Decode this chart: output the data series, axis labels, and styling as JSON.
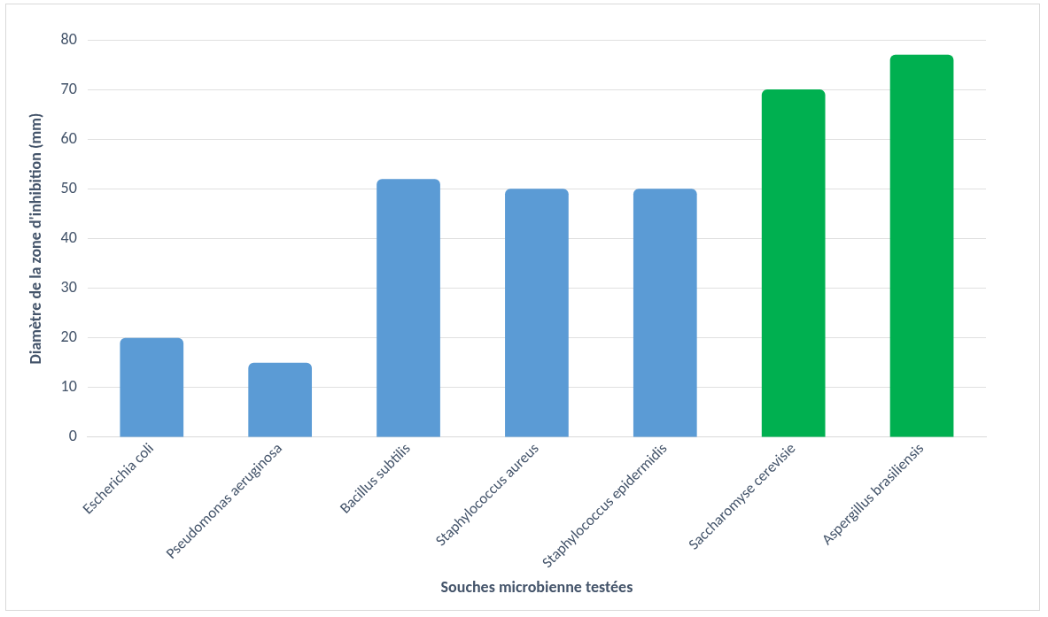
{
  "chart_data": {
    "type": "bar",
    "xlabel": "Souches microbienne testées",
    "ylabel": "Diamètre de la zone d'inhibition (mm)",
    "categories": [
      "Escherichia coli",
      "Pseudomonas aeruginosa",
      "Bacillus subtilis",
      "Staphylococcus aureus",
      "Staphylococcus epidermidis",
      "Saccharomyse cerevisie",
      "Aspergillus brasiliensis"
    ],
    "values": [
      20,
      15,
      52,
      50,
      50,
      70,
      77
    ],
    "colors": [
      "#5b9bd5",
      "#5b9bd5",
      "#5b9bd5",
      "#5b9bd5",
      "#5b9bd5",
      "#00b050",
      "#00b050"
    ],
    "ylim": [
      0,
      80
    ],
    "yticks": [
      0,
      10,
      20,
      30,
      40,
      50,
      60,
      70,
      80
    ],
    "grid": "y",
    "legend": false
  }
}
